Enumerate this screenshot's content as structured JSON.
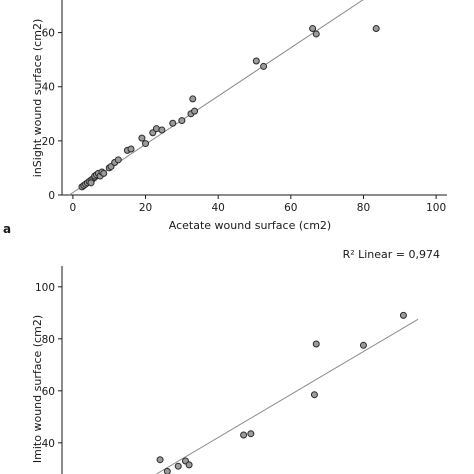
{
  "chart_data": [
    {
      "type": "scatter",
      "panel_label": "a",
      "xlabel": "Acetate wound surface (cm2)",
      "ylabel": "inSight wound surface (cm2)",
      "xlim": [
        -3,
        103
      ],
      "ylim": [
        0,
        75
      ],
      "x_ticks": [
        0,
        20,
        40,
        60,
        80,
        100
      ],
      "y_ticks": [
        0,
        20,
        40,
        60
      ],
      "grid": false,
      "fit_line": {
        "x": [
          -1,
          82
        ],
        "y": [
          0,
          74
        ]
      },
      "annotation": "",
      "points": [
        {
          "x": 2.5,
          "y": 3
        },
        {
          "x": 3,
          "y": 3.5
        },
        {
          "x": 3.5,
          "y": 4
        },
        {
          "x": 4,
          "y": 4.5
        },
        {
          "x": 4.5,
          "y": 5
        },
        {
          "x": 5,
          "y": 5.5
        },
        {
          "x": 5.5,
          "y": 6
        },
        {
          "x": 6,
          "y": 6.5
        },
        {
          "x": 5,
          "y": 4.5
        },
        {
          "x": 6,
          "y": 7
        },
        {
          "x": 6.5,
          "y": 7.5
        },
        {
          "x": 7,
          "y": 8
        },
        {
          "x": 7.5,
          "y": 7
        },
        {
          "x": 8,
          "y": 8.5
        },
        {
          "x": 8.5,
          "y": 8
        },
        {
          "x": 10,
          "y": 10
        },
        {
          "x": 10.5,
          "y": 10.5
        },
        {
          "x": 11.5,
          "y": 12
        },
        {
          "x": 12.5,
          "y": 13
        },
        {
          "x": 15,
          "y": 16.5
        },
        {
          "x": 16,
          "y": 17
        },
        {
          "x": 19,
          "y": 21
        },
        {
          "x": 20,
          "y": 19
        },
        {
          "x": 22,
          "y": 23
        },
        {
          "x": 23,
          "y": 24.5
        },
        {
          "x": 24.5,
          "y": 24
        },
        {
          "x": 27.5,
          "y": 26.5
        },
        {
          "x": 30,
          "y": 27.5
        },
        {
          "x": 32.5,
          "y": 30
        },
        {
          "x": 33.5,
          "y": 31
        },
        {
          "x": 33,
          "y": 35.5
        },
        {
          "x": 50.5,
          "y": 49.5
        },
        {
          "x": 52.5,
          "y": 47.5
        },
        {
          "x": 66,
          "y": 61.5
        },
        {
          "x": 67,
          "y": 59.5
        },
        {
          "x": 83.5,
          "y": 61.5
        }
      ]
    },
    {
      "type": "scatter",
      "panel_label": "",
      "xlabel": "",
      "ylabel": "Imito wound surface (cm2)",
      "xlim": [
        -3,
        103
      ],
      "ylim": [
        28,
        108
      ],
      "x_ticks": [],
      "y_ticks": [
        40,
        60,
        80,
        100
      ],
      "grid": false,
      "fit_line": {
        "x": [
          23,
          95
        ],
        "y": [
          28,
          87.5
        ]
      },
      "annotation": "R² Linear = 0,974",
      "points": [
        {
          "x": 24,
          "y": 33.5
        },
        {
          "x": 26,
          "y": 29
        },
        {
          "x": 29,
          "y": 31
        },
        {
          "x": 31,
          "y": 33
        },
        {
          "x": 32,
          "y": 31.5
        },
        {
          "x": 47,
          "y": 43
        },
        {
          "x": 49,
          "y": 43.5
        },
        {
          "x": 66.5,
          "y": 58.5
        },
        {
          "x": 67,
          "y": 78
        },
        {
          "x": 80,
          "y": 77.5
        },
        {
          "x": 91,
          "y": 89
        }
      ]
    }
  ]
}
